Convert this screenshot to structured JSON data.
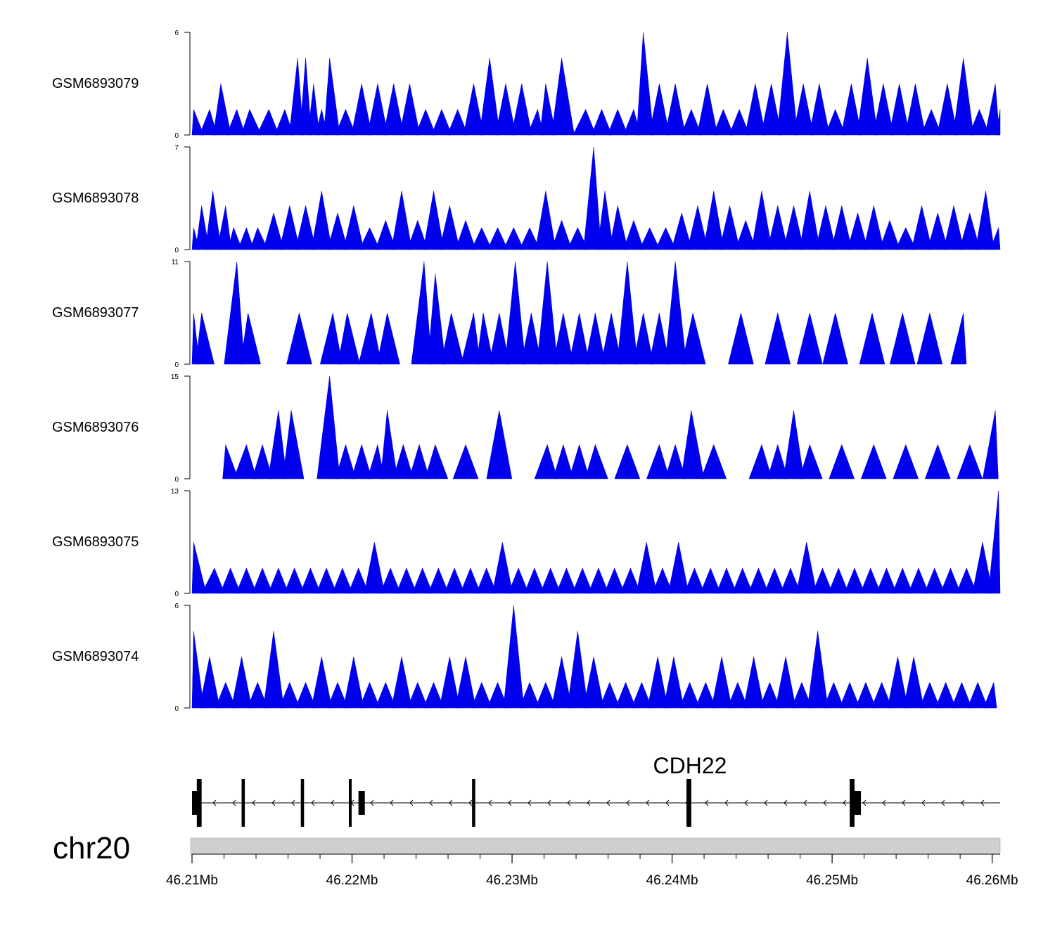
{
  "colors": {
    "signal": "#0000ee",
    "gene": "#000000",
    "ideogram": "#cfcfcf"
  },
  "chart_data": {
    "type": "area",
    "title": "",
    "chromosome": "chr20",
    "x_range_mb": [
      46.21,
      46.2605
    ],
    "x_ticks": [
      {
        "value": 46.21,
        "label": "46.21Mb"
      },
      {
        "value": 46.22,
        "label": "46.22Mb"
      },
      {
        "value": 46.23,
        "label": "46.23Mb"
      },
      {
        "value": 46.24,
        "label": "46.24Mb"
      },
      {
        "value": 46.25,
        "label": "46.25Mb"
      },
      {
        "value": 46.26,
        "label": "46.26Mb"
      }
    ],
    "tracks": [
      {
        "name": "GSM6893079",
        "ymax": 6,
        "ymin_label": "0",
        "ymax_label": "6",
        "peaks": [
          [
            46.2101,
            1.5
          ],
          [
            46.2111,
            1.5
          ],
          [
            46.2118,
            3.0
          ],
          [
            46.2128,
            1.5
          ],
          [
            46.2136,
            1.5
          ],
          [
            46.2148,
            1.5
          ],
          [
            46.2158,
            1.5
          ],
          [
            46.2166,
            4.5
          ],
          [
            46.2171,
            4.5
          ],
          [
            46.2176,
            3.0
          ],
          [
            46.2181,
            1.5
          ],
          [
            46.2186,
            4.5
          ],
          [
            46.2196,
            1.5
          ],
          [
            46.2206,
            3.0
          ],
          [
            46.2216,
            3.0
          ],
          [
            46.2226,
            3.0
          ],
          [
            46.2236,
            3.0
          ],
          [
            46.2246,
            1.5
          ],
          [
            46.2256,
            1.5
          ],
          [
            46.2266,
            1.5
          ],
          [
            46.2276,
            3.0
          ],
          [
            46.2286,
            4.5
          ],
          [
            46.2296,
            3.0
          ],
          [
            46.2306,
            3.0
          ],
          [
            46.2316,
            1.5
          ],
          [
            46.2321,
            3.0
          ],
          [
            46.2331,
            4.5
          ],
          [
            46.2346,
            1.5
          ],
          [
            46.2356,
            1.5
          ],
          [
            46.2366,
            1.5
          ],
          [
            46.2376,
            1.5
          ],
          [
            46.2382,
            6.0
          ],
          [
            46.2392,
            3.0
          ],
          [
            46.2402,
            3.0
          ],
          [
            46.2412,
            1.5
          ],
          [
            46.2422,
            3.0
          ],
          [
            46.2432,
            1.5
          ],
          [
            46.2442,
            1.5
          ],
          [
            46.2452,
            3.0
          ],
          [
            46.2462,
            3.0
          ],
          [
            46.2472,
            6.0
          ],
          [
            46.2482,
            3.0
          ],
          [
            46.2492,
            3.0
          ],
          [
            46.2502,
            1.5
          ],
          [
            46.2512,
            3.0
          ],
          [
            46.2522,
            4.5
          ],
          [
            46.2532,
            3.0
          ],
          [
            46.2542,
            3.0
          ],
          [
            46.2552,
            3.0
          ],
          [
            46.2562,
            1.5
          ],
          [
            46.2572,
            3.0
          ],
          [
            46.2582,
            4.5
          ],
          [
            46.2592,
            1.5
          ],
          [
            46.2602,
            3.0
          ],
          [
            46.2605,
            1.5
          ]
        ]
      },
      {
        "name": "GSM6893078",
        "ymax": 7,
        "ymin_label": "0",
        "ymax_label": "7",
        "peaks": [
          [
            46.2101,
            1.5
          ],
          [
            46.2106,
            3.0
          ],
          [
            46.2113,
            4.0
          ],
          [
            46.2121,
            3.0
          ],
          [
            46.2126,
            1.5
          ],
          [
            46.2134,
            1.5
          ],
          [
            46.2141,
            1.5
          ],
          [
            46.2151,
            2.5
          ],
          [
            46.2161,
            3.0
          ],
          [
            46.2171,
            3.0
          ],
          [
            46.2181,
            4.0
          ],
          [
            46.2191,
            2.5
          ],
          [
            46.2201,
            3.0
          ],
          [
            46.2211,
            1.5
          ],
          [
            46.2221,
            2.0
          ],
          [
            46.2231,
            4.0
          ],
          [
            46.2241,
            2.0
          ],
          [
            46.2251,
            4.0
          ],
          [
            46.2261,
            3.0
          ],
          [
            46.2271,
            2.0
          ],
          [
            46.2281,
            1.5
          ],
          [
            46.2291,
            1.5
          ],
          [
            46.2301,
            1.5
          ],
          [
            46.2311,
            1.5
          ],
          [
            46.2321,
            4.0
          ],
          [
            46.2331,
            2.0
          ],
          [
            46.2341,
            1.5
          ],
          [
            46.2351,
            7.0
          ],
          [
            46.2358,
            4.0
          ],
          [
            46.2366,
            3.0
          ],
          [
            46.2376,
            2.0
          ],
          [
            46.2386,
            1.5
          ],
          [
            46.2396,
            1.5
          ],
          [
            46.2406,
            2.5
          ],
          [
            46.2416,
            3.0
          ],
          [
            46.2426,
            4.0
          ],
          [
            46.2436,
            3.0
          ],
          [
            46.2446,
            2.0
          ],
          [
            46.2456,
            4.0
          ],
          [
            46.2466,
            3.0
          ],
          [
            46.2476,
            3.0
          ],
          [
            46.2486,
            4.0
          ],
          [
            46.2496,
            3.0
          ],
          [
            46.2506,
            3.0
          ],
          [
            46.2516,
            2.5
          ],
          [
            46.2526,
            3.0
          ],
          [
            46.2536,
            2.0
          ],
          [
            46.2546,
            1.5
          ],
          [
            46.2556,
            3.0
          ],
          [
            46.2566,
            2.5
          ],
          [
            46.2576,
            3.0
          ],
          [
            46.2586,
            2.5
          ],
          [
            46.2596,
            4.0
          ],
          [
            46.2604,
            1.5
          ]
        ]
      },
      {
        "name": "GSM6893077",
        "ymax": 11,
        "ymin_label": "0",
        "ymax_label": "11",
        "peaks": [
          [
            46.2101,
            5.5
          ],
          [
            46.2106,
            5.5
          ],
          [
            46.2128,
            11.0
          ],
          [
            46.2135,
            5.5
          ],
          [
            46.2167,
            5.5
          ],
          [
            46.2188,
            5.5
          ],
          [
            46.2197,
            5.5
          ],
          [
            46.2212,
            5.5
          ],
          [
            46.2222,
            5.5
          ],
          [
            46.2245,
            11.0
          ],
          [
            46.2252,
            9.7
          ],
          [
            46.2262,
            5.5
          ],
          [
            46.2276,
            5.5
          ],
          [
            46.2282,
            5.5
          ],
          [
            46.2292,
            5.5
          ],
          [
            46.2302,
            11.0
          ],
          [
            46.2312,
            5.5
          ],
          [
            46.2322,
            11.0
          ],
          [
            46.2332,
            5.5
          ],
          [
            46.2342,
            5.5
          ],
          [
            46.2352,
            5.5
          ],
          [
            46.2362,
            5.5
          ],
          [
            46.2372,
            11.0
          ],
          [
            46.2382,
            5.5
          ],
          [
            46.2392,
            5.5
          ],
          [
            46.2402,
            11.0
          ],
          [
            46.2413,
            5.5
          ],
          [
            46.2443,
            5.5
          ],
          [
            46.2466,
            5.5
          ],
          [
            46.2486,
            5.5
          ],
          [
            46.2502,
            5.5
          ],
          [
            46.2525,
            5.5
          ],
          [
            46.2544,
            5.5
          ],
          [
            46.2561,
            5.5
          ],
          [
            46.2582,
            5.5
          ]
        ]
      },
      {
        "name": "GSM6893076",
        "ymax": 15,
        "ymin_label": "0",
        "ymax_label": "15",
        "peaks": [
          [
            46.2121,
            5.0
          ],
          [
            46.2134,
            5.0
          ],
          [
            46.2144,
            5.0
          ],
          [
            46.2154,
            10.0
          ],
          [
            46.2162,
            10.0
          ],
          [
            46.2186,
            15.0
          ],
          [
            46.2196,
            5.0
          ],
          [
            46.2206,
            5.0
          ],
          [
            46.2216,
            5.0
          ],
          [
            46.2222,
            10.0
          ],
          [
            46.2232,
            5.0
          ],
          [
            46.2242,
            5.0
          ],
          [
            46.2252,
            5.0
          ],
          [
            46.2271,
            5.0
          ],
          [
            46.2292,
            10.0
          ],
          [
            46.2322,
            5.0
          ],
          [
            46.2332,
            5.0
          ],
          [
            46.2342,
            5.0
          ],
          [
            46.2352,
            5.0
          ],
          [
            46.2372,
            5.0
          ],
          [
            46.2392,
            5.0
          ],
          [
            46.2402,
            5.0
          ],
          [
            46.2412,
            10.0
          ],
          [
            46.2426,
            5.0
          ],
          [
            46.2456,
            5.0
          ],
          [
            46.2466,
            5.0
          ],
          [
            46.2476,
            10.0
          ],
          [
            46.2486,
            5.0
          ],
          [
            46.2506,
            5.0
          ],
          [
            46.2526,
            5.0
          ],
          [
            46.2546,
            5.0
          ],
          [
            46.2566,
            5.0
          ],
          [
            46.2586,
            5.0
          ],
          [
            46.2602,
            10.0
          ]
        ]
      },
      {
        "name": "GSM6893075",
        "ymax": 13,
        "ymin_label": "0",
        "ymax_label": "13",
        "peaks": [
          [
            46.2101,
            6.5
          ],
          [
            46.2114,
            3.2
          ],
          [
            46.2124,
            3.2
          ],
          [
            46.2134,
            3.2
          ],
          [
            46.2144,
            3.2
          ],
          [
            46.2154,
            3.2
          ],
          [
            46.2164,
            3.2
          ],
          [
            46.2174,
            3.2
          ],
          [
            46.2184,
            3.2
          ],
          [
            46.2194,
            3.2
          ],
          [
            46.2204,
            3.2
          ],
          [
            46.2214,
            6.5
          ],
          [
            46.2224,
            3.2
          ],
          [
            46.2234,
            3.2
          ],
          [
            46.2244,
            3.2
          ],
          [
            46.2254,
            3.2
          ],
          [
            46.2264,
            3.2
          ],
          [
            46.2274,
            3.2
          ],
          [
            46.2284,
            3.2
          ],
          [
            46.2294,
            6.5
          ],
          [
            46.2304,
            3.2
          ],
          [
            46.2314,
            3.2
          ],
          [
            46.2324,
            3.2
          ],
          [
            46.2334,
            3.2
          ],
          [
            46.2344,
            3.2
          ],
          [
            46.2354,
            3.2
          ],
          [
            46.2364,
            3.2
          ],
          [
            46.2374,
            3.2
          ],
          [
            46.2384,
            6.5
          ],
          [
            46.2394,
            3.2
          ],
          [
            46.2404,
            6.5
          ],
          [
            46.2414,
            3.2
          ],
          [
            46.2424,
            3.2
          ],
          [
            46.2434,
            3.2
          ],
          [
            46.2444,
            3.2
          ],
          [
            46.2454,
            3.2
          ],
          [
            46.2464,
            3.2
          ],
          [
            46.2474,
            3.2
          ],
          [
            46.2484,
            6.5
          ],
          [
            46.2494,
            3.2
          ],
          [
            46.2504,
            3.2
          ],
          [
            46.2514,
            3.2
          ],
          [
            46.2524,
            3.2
          ],
          [
            46.2534,
            3.2
          ],
          [
            46.2544,
            3.2
          ],
          [
            46.2554,
            3.2
          ],
          [
            46.2564,
            3.2
          ],
          [
            46.2574,
            3.2
          ],
          [
            46.2584,
            3.2
          ],
          [
            46.2594,
            6.5
          ],
          [
            46.2604,
            13.0
          ]
        ]
      },
      {
        "name": "GSM6893074",
        "ymax": 6,
        "ymin_label": "0",
        "ymax_label": "6",
        "peaks": [
          [
            46.2101,
            4.5
          ],
          [
            46.2111,
            3.0
          ],
          [
            46.2121,
            1.5
          ],
          [
            46.2131,
            3.0
          ],
          [
            46.2141,
            1.5
          ],
          [
            46.2151,
            4.5
          ],
          [
            46.2161,
            1.5
          ],
          [
            46.2171,
            1.5
          ],
          [
            46.2181,
            3.0
          ],
          [
            46.2191,
            1.5
          ],
          [
            46.2201,
            3.0
          ],
          [
            46.2211,
            1.5
          ],
          [
            46.2221,
            1.5
          ],
          [
            46.2231,
            3.0
          ],
          [
            46.2241,
            1.5
          ],
          [
            46.2251,
            1.5
          ],
          [
            46.2261,
            3.0
          ],
          [
            46.2271,
            3.0
          ],
          [
            46.2281,
            1.5
          ],
          [
            46.2291,
            1.5
          ],
          [
            46.2301,
            6.0
          ],
          [
            46.2311,
            1.5
          ],
          [
            46.2321,
            1.5
          ],
          [
            46.2331,
            3.0
          ],
          [
            46.2341,
            4.5
          ],
          [
            46.2351,
            3.0
          ],
          [
            46.2361,
            1.5
          ],
          [
            46.2371,
            1.5
          ],
          [
            46.2381,
            1.5
          ],
          [
            46.2391,
            3.0
          ],
          [
            46.2401,
            3.0
          ],
          [
            46.2411,
            1.5
          ],
          [
            46.2421,
            1.5
          ],
          [
            46.2431,
            3.0
          ],
          [
            46.2441,
            1.5
          ],
          [
            46.2451,
            3.0
          ],
          [
            46.2461,
            1.5
          ],
          [
            46.2471,
            3.0
          ],
          [
            46.2481,
            1.5
          ],
          [
            46.2491,
            4.5
          ],
          [
            46.2501,
            1.5
          ],
          [
            46.2511,
            1.5
          ],
          [
            46.2521,
            1.5
          ],
          [
            46.2531,
            1.5
          ],
          [
            46.2541,
            3.0
          ],
          [
            46.2551,
            3.0
          ],
          [
            46.2561,
            1.5
          ],
          [
            46.2571,
            1.5
          ],
          [
            46.2581,
            1.5
          ],
          [
            46.2591,
            1.5
          ],
          [
            46.2601,
            1.5
          ]
        ]
      }
    ],
    "gene": {
      "name": "CDH22",
      "strand": "-",
      "start_mb": 46.21,
      "end_mb": 46.2605,
      "exons_mb": [
        [
          46.21,
          46.2105
        ],
        [
          46.2103,
          46.2106
        ],
        [
          46.2131,
          46.2133
        ],
        [
          46.2168,
          46.217
        ],
        [
          46.2198,
          46.2199
        ],
        [
          46.2204,
          46.2208
        ],
        [
          46.2275,
          46.2277
        ],
        [
          46.2409,
          46.2412
        ],
        [
          46.2511,
          46.2514
        ],
        [
          46.2513,
          46.2518
        ]
      ]
    }
  }
}
